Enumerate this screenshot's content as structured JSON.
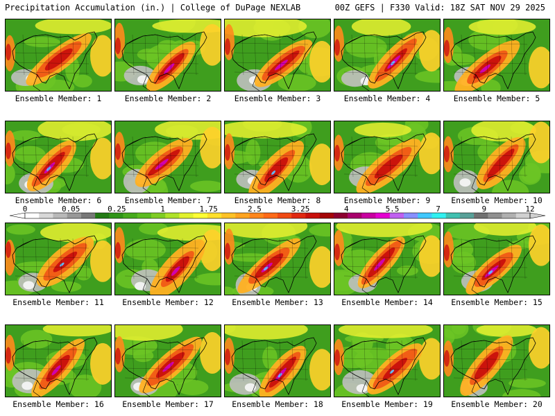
{
  "header": {
    "left": "Precipitation Accumulation (in.) | College of DuPage NEXLAB",
    "right": "00Z GEFS | F330 Valid: 18Z SAT NOV 29 2025"
  },
  "members": [
    {
      "label": "Ensemble Member: 1"
    },
    {
      "label": "Ensemble Member: 2"
    },
    {
      "label": "Ensemble Member: 3"
    },
    {
      "label": "Ensemble Member: 4"
    },
    {
      "label": "Ensemble Member: 5"
    },
    {
      "label": "Ensemble Member: 6"
    },
    {
      "label": "Ensemble Member: 7"
    },
    {
      "label": "Ensemble Member: 8"
    },
    {
      "label": "Ensemble Member: 9"
    },
    {
      "label": "Ensemble Member: 10"
    },
    {
      "label": "Ensemble Member: 11"
    },
    {
      "label": "Ensemble Member: 12"
    },
    {
      "label": "Ensemble Member: 13"
    },
    {
      "label": "Ensemble Member: 14"
    },
    {
      "label": "Ensemble Member: 15"
    },
    {
      "label": "Ensemble Member: 16"
    },
    {
      "label": "Ensemble Member: 17"
    },
    {
      "label": "Ensemble Member: 18"
    },
    {
      "label": "Ensemble Member: 19"
    },
    {
      "label": "Ensemble Member: 20"
    }
  ],
  "colorbar": {
    "labels": [
      "0",
      "0.05",
      "0.25",
      "1",
      "1.75",
      "2.5",
      "3.25",
      "4",
      "5.5",
      "7",
      "9",
      "12"
    ],
    "colors": [
      "#ffffff",
      "#d8d8d8",
      "#b8b8b8",
      "#989898",
      "#787878",
      "#227a14",
      "#2f9418",
      "#46aa1c",
      "#5cbc20",
      "#7fcc24",
      "#aee22a",
      "#e2f22e",
      "#ffff34",
      "#ffe02c",
      "#ffc226",
      "#ffa420",
      "#ff861c",
      "#ff6a18",
      "#f04a14",
      "#e02810",
      "#c8100c",
      "#a40608",
      "#8c0030",
      "#a8006c",
      "#c800a0",
      "#e400d0",
      "#c060f0",
      "#8890ff",
      "#40c8ff",
      "#30f0f0",
      "#40c0b0",
      "#58a098",
      "#707070",
      "#909090",
      "#b0b0b0",
      "#d0d0d0"
    ]
  }
}
